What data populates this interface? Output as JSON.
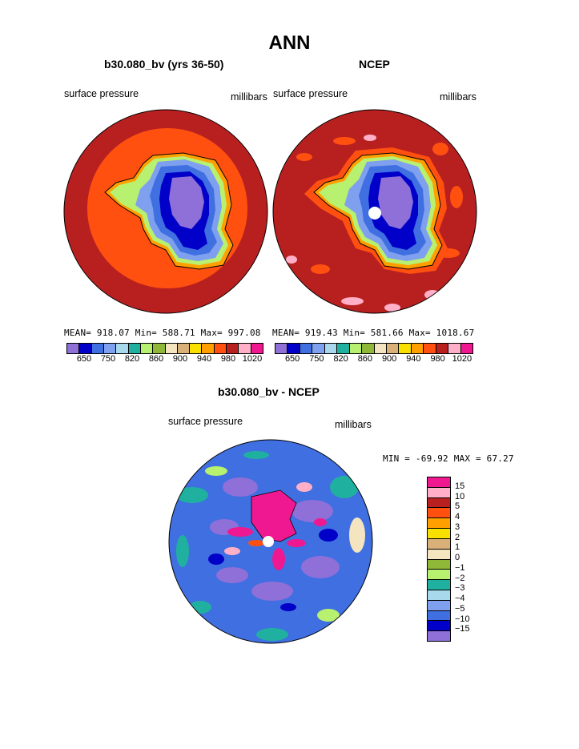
{
  "page": {
    "title": "ANN"
  },
  "panels": [
    {
      "title": "b30.080_bv (yrs 36-50)",
      "left_label": "surface pressure",
      "right_label": "millibars",
      "stats": "MEAN= 918.07   Min= 588.71   Max= 997.08"
    },
    {
      "title": "NCEP",
      "left_label": "surface pressure",
      "right_label": "millibars",
      "stats": "MEAN= 919.43   Min= 581.66   Max= 1018.67"
    },
    {
      "title": "b30.080_bv - NCEP",
      "left_label": "surface pressure",
      "right_label": "millibars",
      "stats": "MIN = -69.92 MAX =  67.27"
    }
  ],
  "colorbar_top": {
    "tick_labels": [
      "650",
      "750",
      "820",
      "860",
      "900",
      "940",
      "980",
      "1020"
    ],
    "colors": [
      "#8f6fd8",
      "#0000c8",
      "#3f6fe0",
      "#7fa0ee",
      "#a8d8ec",
      "#20b0a0",
      "#b8f070",
      "#8fb838",
      "#f5e4c0",
      "#d8b078",
      "#f8e000",
      "#ffa000",
      "#ff5010",
      "#b82020",
      "#ffb0c8",
      "#f01890"
    ]
  },
  "colorbar_diff": {
    "tick_labels": [
      "15",
      "10",
      "5",
      "4",
      "3",
      "2",
      "1",
      "0",
      "−1",
      "−2",
      "−3",
      "−4",
      "−5",
      "−10",
      "−15"
    ],
    "colors": [
      "#f01890",
      "#ffb0c8",
      "#b82020",
      "#ff5010",
      "#ffa000",
      "#f8e000",
      "#d8b078",
      "#f5e4c0",
      "#8fb838",
      "#b8f070",
      "#20b0a0",
      "#a8d8ec",
      "#7fa0ee",
      "#3f6fe0",
      "#0000c8",
      "#8f6fd8"
    ]
  }
}
